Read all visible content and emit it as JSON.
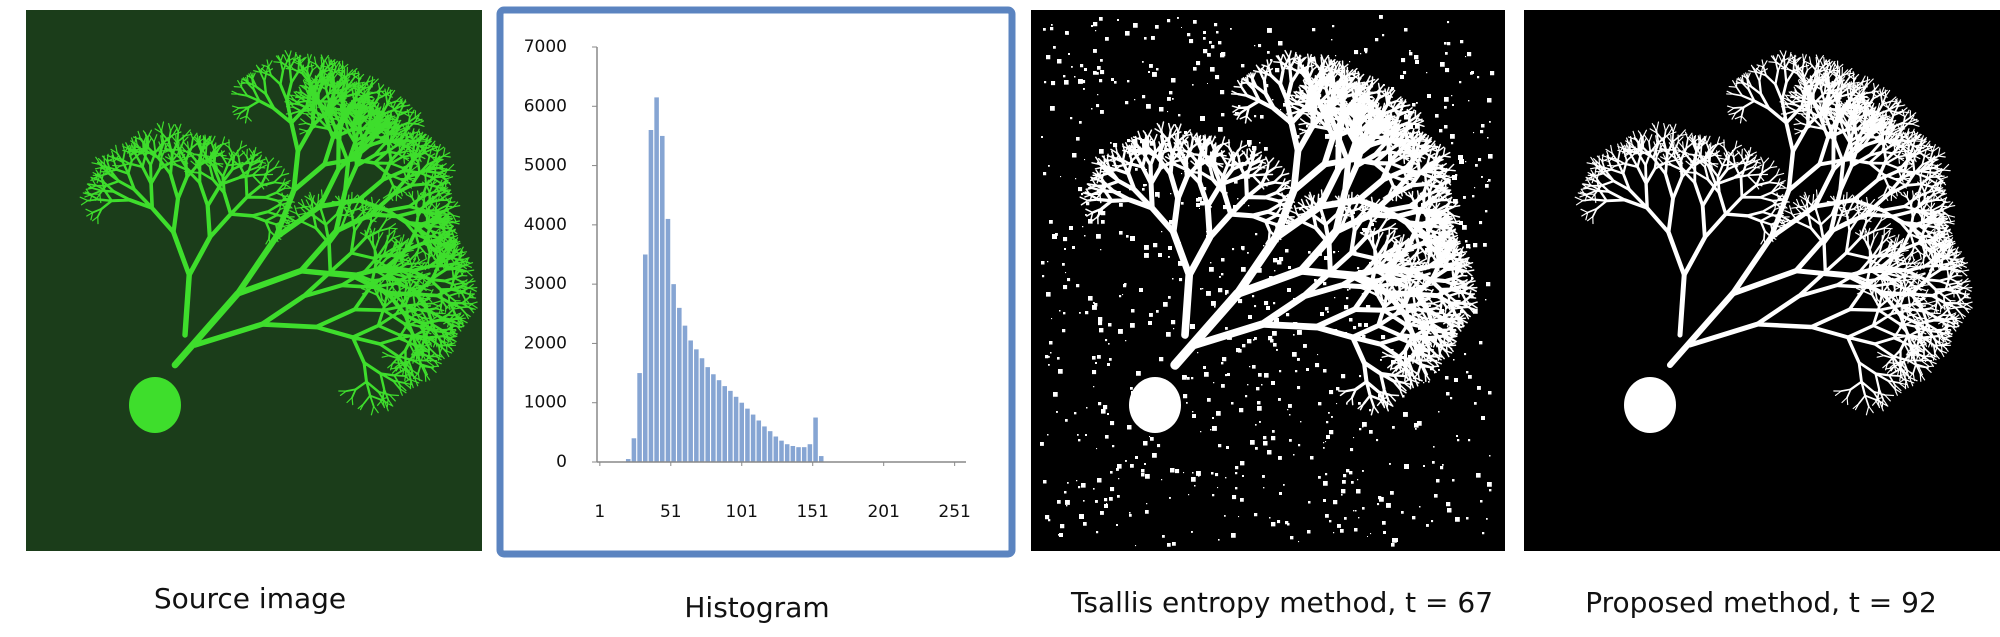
{
  "panels": [
    {
      "caption": "Source image"
    },
    {
      "caption": "Histogram"
    },
    {
      "caption": "Tsallis entropy method, t = 67"
    },
    {
      "caption": "Proposed method, t = 92"
    }
  ],
  "chart_data": {
    "type": "bar",
    "color": "#86a5d3",
    "x": [
      1,
      5,
      9,
      13,
      17,
      21,
      25,
      29,
      33,
      37,
      41,
      45,
      49,
      53,
      57,
      61,
      65,
      69,
      73,
      77,
      81,
      85,
      89,
      93,
      97,
      101,
      105,
      109,
      113,
      117,
      121,
      125,
      129,
      133,
      137,
      141,
      145,
      149,
      153,
      157,
      161,
      165,
      169,
      173,
      177,
      181,
      185,
      189,
      193,
      197,
      201,
      205,
      209,
      213,
      217,
      221,
      225,
      229,
      233,
      237,
      241,
      245,
      249,
      253
    ],
    "values": [
      0,
      0,
      0,
      0,
      0,
      50,
      400,
      1500,
      3500,
      5600,
      6150,
      5500,
      4100,
      3000,
      2600,
      2300,
      2050,
      1900,
      1750,
      1600,
      1480,
      1380,
      1280,
      1200,
      1100,
      1000,
      900,
      800,
      700,
      600,
      520,
      430,
      360,
      300,
      270,
      250,
      250,
      300,
      750,
      100,
      0,
      0,
      0,
      0,
      0,
      0,
      0,
      0,
      0,
      0,
      0,
      0,
      0,
      0,
      0,
      0,
      0,
      0,
      0,
      0,
      0,
      0,
      0,
      0
    ],
    "xlim": [
      -1,
      259
    ],
    "ylim": [
      0,
      7000
    ],
    "xticks": [
      1,
      51,
      101,
      151,
      201,
      251
    ],
    "yticks": [
      0,
      1000,
      2000,
      3000,
      4000,
      5000,
      6000,
      7000
    ]
  }
}
